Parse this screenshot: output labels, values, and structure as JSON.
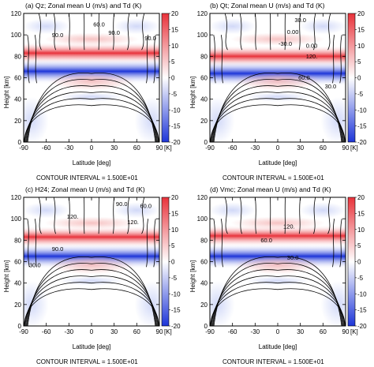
{
  "chart_data": [
    {
      "type": "heatmap",
      "title": "(a) Qz; Zonal mean U (m/s) and Td (K)",
      "xlabel": "Latitude [deg]",
      "ylabel": "Height [km]",
      "xlim": [
        -90,
        90
      ],
      "ylim": [
        0,
        120
      ],
      "xticks": [
        "-90",
        "-60",
        "-30",
        "0",
        "30",
        "60",
        "90"
      ],
      "yticks": [
        "0",
        "20",
        "40",
        "60",
        "80",
        "100",
        "120"
      ],
      "colorbar": {
        "ticks": [
          "20",
          "15",
          "10",
          "5",
          "0",
          "-5",
          "-10",
          "-15",
          "-20"
        ],
        "unit": "[K]",
        "range": [
          -20,
          20
        ],
        "colors": {
          "high": "#e8323a",
          "low": "#1d35d8",
          "mid": "#ffffff"
        }
      },
      "contour_interval": "CONTOUR INTERVAL = 1.500E+01",
      "contour_labels": [
        {
          "text": "90.0",
          "x": -45,
          "y": 98
        },
        {
          "text": "90.0",
          "x": 30,
          "y": 100
        },
        {
          "text": "60.0",
          "x": 10,
          "y": 108
        },
        {
          "text": "90.0",
          "x": 78,
          "y": 95
        }
      ],
      "bands": {
        "red_center_km": 83,
        "blue_center_km": 66,
        "peak_K": 20
      }
    },
    {
      "type": "heatmap",
      "title": "(b) Qt; Zonal mean U (m/s) and Td (K)",
      "xlabel": "Latitude [deg]",
      "ylabel": "Height [km]",
      "xlim": [
        -90,
        90
      ],
      "ylim": [
        0,
        120
      ],
      "xticks": [
        "-90",
        "-60",
        "-30",
        "0",
        "30",
        "60",
        "90"
      ],
      "yticks": [
        "0",
        "20",
        "40",
        "60",
        "80",
        "100",
        "120"
      ],
      "colorbar": {
        "ticks": [
          "20",
          "15",
          "10",
          "5",
          "0",
          "-5",
          "-10",
          "-15",
          "-20"
        ],
        "unit": "[K]",
        "range": [
          -20,
          20
        ],
        "colors": {
          "high": "#e8323a",
          "low": "#1d35d8",
          "mid": "#ffffff"
        }
      },
      "contour_interval": "CONTOUR INTERVAL = 1.500E+01",
      "contour_labels": [
        {
          "text": "30.0",
          "x": 30,
          "y": 112
        },
        {
          "text": "0.00",
          "x": 20,
          "y": 101
        },
        {
          "text": "-30.0",
          "x": 10,
          "y": 90
        },
        {
          "text": "0.00",
          "x": 45,
          "y": 88
        },
        {
          "text": "120.",
          "x": 45,
          "y": 78
        },
        {
          "text": "60.0",
          "x": 35,
          "y": 58
        },
        {
          "text": "30.0",
          "x": 70,
          "y": 50
        }
      ],
      "bands": {
        "red_center_km": 80,
        "blue_center_km": 64,
        "peak_K": 20
      }
    },
    {
      "type": "heatmap",
      "title": "(c) H24; Zonal mean U (m/s) and Td (K)",
      "xlabel": "Latitude [deg]",
      "ylabel": "Height [km]",
      "xlim": [
        -90,
        90
      ],
      "ylim": [
        0,
        120
      ],
      "xticks": [
        "-90",
        "-60",
        "-30",
        "0",
        "30",
        "60",
        "90"
      ],
      "yticks": [
        "0",
        "20",
        "40",
        "60",
        "80",
        "100",
        "120"
      ],
      "colorbar": {
        "ticks": [
          "20",
          "15",
          "10",
          "5",
          "0",
          "-5",
          "-10",
          "-15",
          "-20"
        ],
        "unit": "[K]",
        "range": [
          -20,
          20
        ],
        "colors": {
          "high": "#e8323a",
          "low": "#1d35d8",
          "mid": "#ffffff"
        }
      },
      "contour_interval": "CONTOUR INTERVAL = 1.500E+01",
      "contour_labels": [
        {
          "text": "90.0",
          "x": 40,
          "y": 112
        },
        {
          "text": "60.0",
          "x": 72,
          "y": 110
        },
        {
          "text": "120.",
          "x": -25,
          "y": 100
        },
        {
          "text": "120.",
          "x": 55,
          "y": 95
        },
        {
          "text": "90.0",
          "x": -45,
          "y": 70
        },
        {
          "text": "30.0",
          "x": -75,
          "y": 55
        }
      ],
      "bands": {
        "red_center_km": 83,
        "blue_center_km": 65,
        "peak_K": 20
      }
    },
    {
      "type": "heatmap",
      "title": "(d) Vmc; Zonal mean U (m/s) and Td (K)",
      "xlabel": "Latitude [deg]",
      "ylabel": "Height [km]",
      "xlim": [
        -90,
        90
      ],
      "ylim": [
        0,
        120
      ],
      "xticks": [
        "-90",
        "-60",
        "-30",
        "0",
        "30",
        "60",
        "90"
      ],
      "yticks": [
        "0",
        "20",
        "40",
        "60",
        "80",
        "100",
        "120"
      ],
      "colorbar": {
        "ticks": [
          "20",
          "15",
          "10",
          "5",
          "0",
          "-5",
          "-10",
          "-15",
          "-20"
        ],
        "unit": "[K]",
        "range": [
          -20,
          20
        ],
        "colors": {
          "high": "#e8323a",
          "low": "#1d35d8",
          "mid": "#ffffff"
        }
      },
      "contour_interval": "CONTOUR INTERVAL = 1.500E+01",
      "contour_labels": [
        {
          "text": "120.",
          "x": 15,
          "y": 91
        },
        {
          "text": "60.0",
          "x": -15,
          "y": 78
        },
        {
          "text": "30.0",
          "x": 20,
          "y": 62
        }
      ],
      "bands": {
        "red_center_km": 84,
        "blue_center_km": 65,
        "peak_K": 20
      }
    }
  ]
}
